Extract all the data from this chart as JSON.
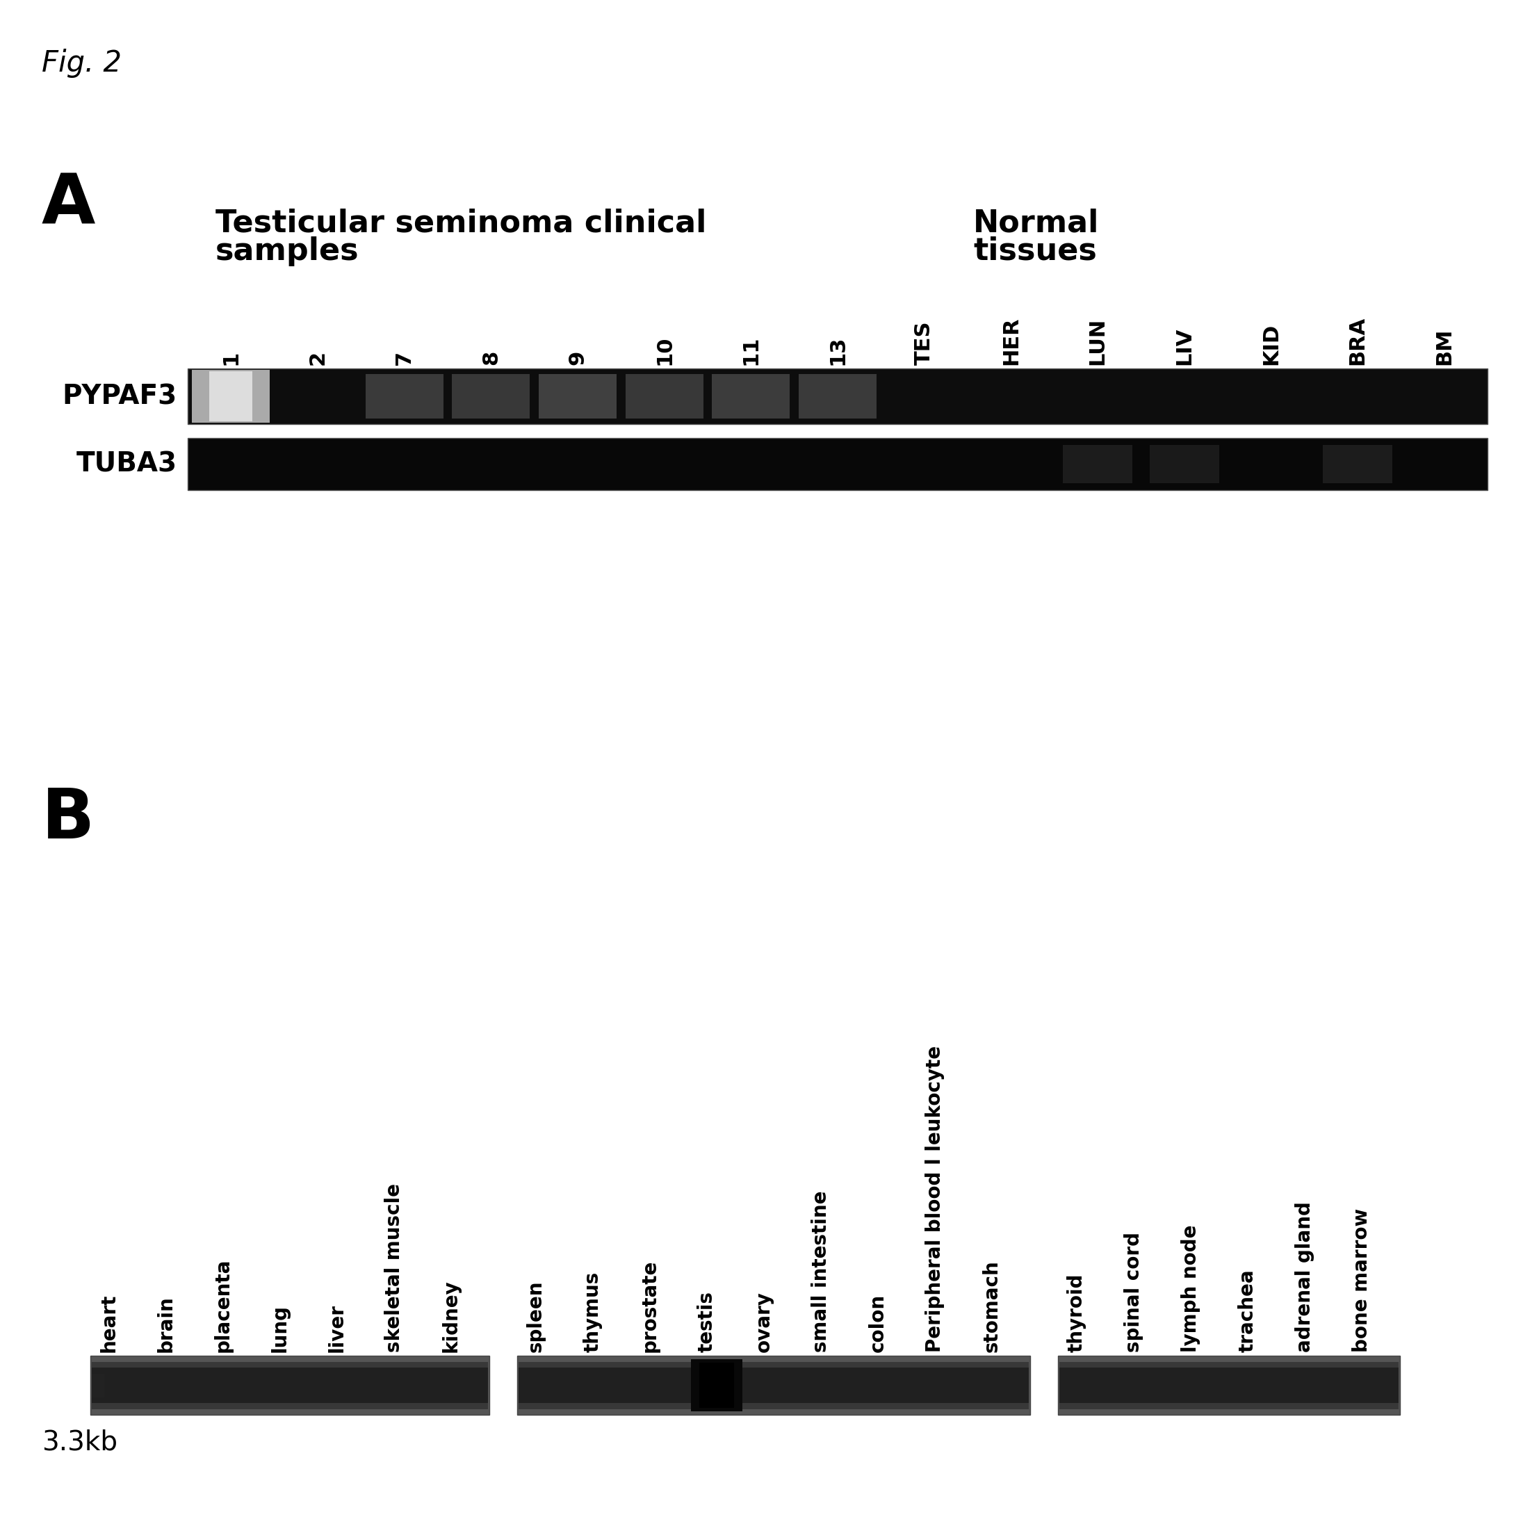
{
  "fig_label": "Fig. 2",
  "panel_A_label": "A",
  "panel_B_label": "B",
  "panel_A_group1_title_line1": "Testicular seminoma clinical",
  "panel_A_group1_title_line2": "samples",
  "panel_A_group2_title_line1": "Normal",
  "panel_A_group2_title_line2": "tissues",
  "panel_A_lane_labels": [
    "1",
    "2",
    "7",
    "8",
    "9",
    "10",
    "11",
    "13",
    "TES",
    "HER",
    "LUN",
    "LIV",
    "KID",
    "BRA",
    "BM"
  ],
  "panel_A_row_labels": [
    "PYPAF3",
    "TUBA3"
  ],
  "panel_B_labels_group1": [
    "heart",
    "brain",
    "placenta",
    "lung",
    "liver",
    "skeletal muscle",
    "kidney"
  ],
  "panel_B_labels_group2": [
    "spleen",
    "thymus",
    "prostate",
    "testis",
    "ovary",
    "small intestine",
    "colon",
    "Peripheral blood l leukocyte",
    "stomach"
  ],
  "panel_B_labels_group3": [
    "thyroid",
    "spinal cord",
    "lymph node",
    "trachea",
    "adrenal gland",
    "bone marrow"
  ],
  "panel_B_size_label": "3.3kb",
  "background_color": "#ffffff",
  "black": "#000000",
  "blot_bg": "#111111",
  "blot_border": "#444444"
}
